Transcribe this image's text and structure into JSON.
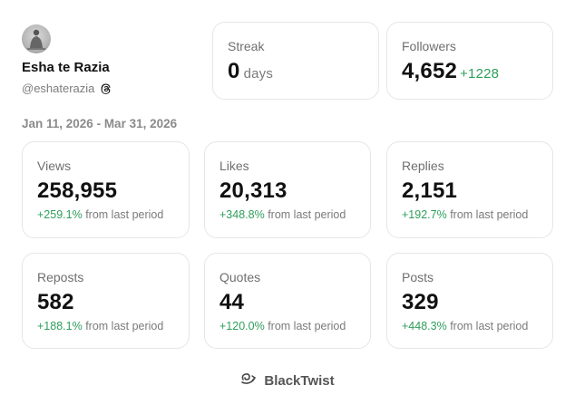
{
  "profile": {
    "name": "Esha te Razia",
    "handle": "@eshaterazia"
  },
  "streak": {
    "label": "Streak",
    "value": "0",
    "unit": "days"
  },
  "followers": {
    "label": "Followers",
    "value": "4,652",
    "delta": "+1228"
  },
  "period": "Jan 11, 2026 - Mar 31, 2026",
  "change_suffix": "from last period",
  "stats": [
    {
      "label": "Views",
      "value": "258,955",
      "change": "+259.1%"
    },
    {
      "label": "Likes",
      "value": "20,313",
      "change": "+348.8%"
    },
    {
      "label": "Replies",
      "value": "2,151",
      "change": "+192.7%"
    },
    {
      "label": "Reposts",
      "value": "582",
      "change": "+188.1%"
    },
    {
      "label": "Quotes",
      "value": "44",
      "change": "+120.0%"
    },
    {
      "label": "Posts",
      "value": "329",
      "change": "+448.3%"
    }
  ],
  "brand": {
    "name": "BlackTwist",
    "icon": "blacktwist-logo-icon"
  },
  "colors": {
    "positive": "#2e9e5b",
    "border": "#e6e6e6",
    "muted": "#7a7a7a"
  }
}
